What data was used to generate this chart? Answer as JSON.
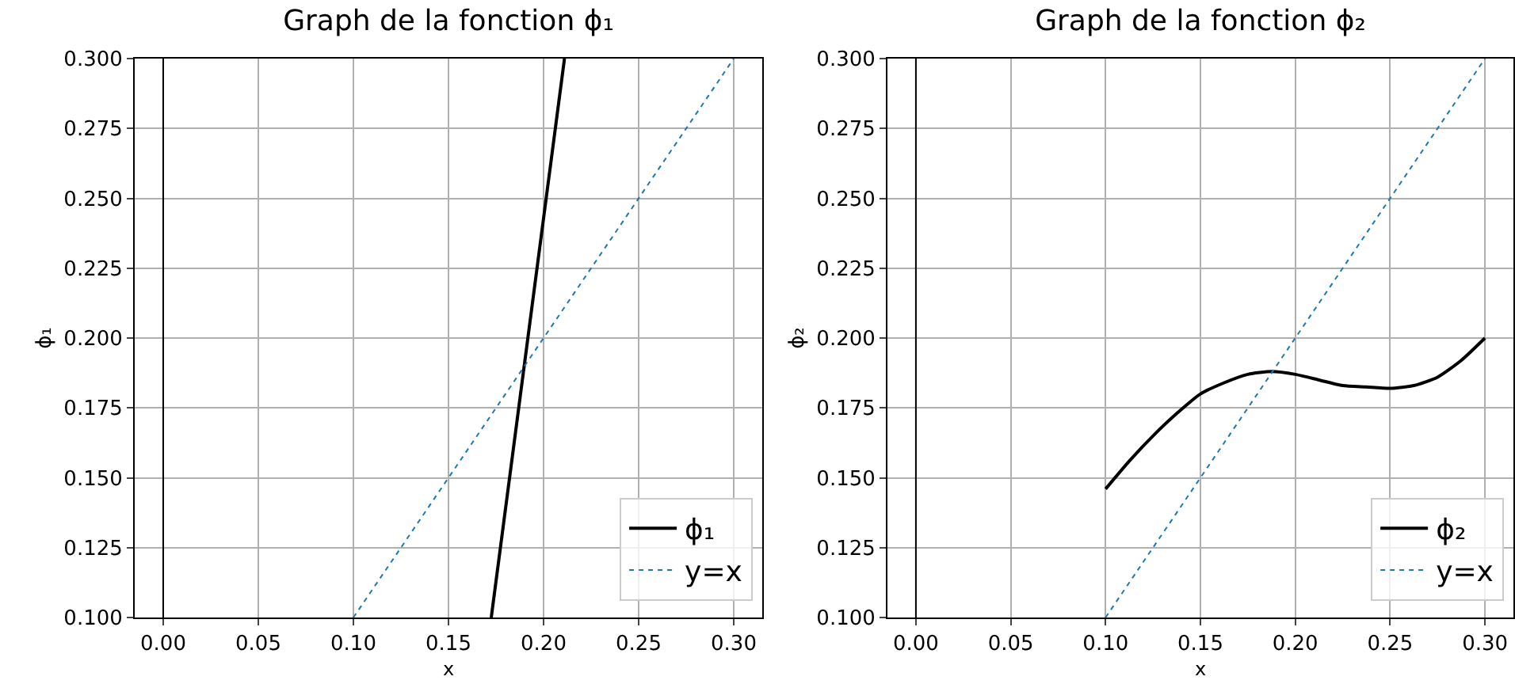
{
  "chart_data": [
    {
      "type": "line",
      "title": "Graph de la fonction ϕ₁",
      "xlabel": "x",
      "ylabel": "ϕ₁",
      "series": [
        {
          "name": "ϕ₁",
          "color": "#000000",
          "line_style": "solid",
          "x": [
            0.1725,
            0.211
          ],
          "values": [
            0.1,
            0.3
          ]
        },
        {
          "name": "y=x",
          "color": "#1f77b4",
          "line_style": "dotted",
          "x": [
            0.1,
            0.3
          ],
          "values": [
            0.1,
            0.3
          ]
        }
      ],
      "xlim": [
        -0.015,
        0.315
      ],
      "ylim": [
        0.1,
        0.3
      ],
      "xticks": [
        {
          "value": 0,
          "label": "0.00"
        },
        {
          "value": 0.05,
          "label": "0.05"
        },
        {
          "value": 0.1,
          "label": "0.10"
        },
        {
          "value": 0.15,
          "label": "0.15"
        },
        {
          "value": 0.2,
          "label": "0.20"
        },
        {
          "value": 0.25,
          "label": "0.25"
        },
        {
          "value": 0.3,
          "label": "0.30"
        }
      ],
      "yticks": [
        {
          "value": 0.1,
          "label": "0.100"
        },
        {
          "value": 0.125,
          "label": "0.125"
        },
        {
          "value": 0.15,
          "label": "0.150"
        },
        {
          "value": 0.175,
          "label": "0.175"
        },
        {
          "value": 0.2,
          "label": "0.200"
        },
        {
          "value": 0.225,
          "label": "0.225"
        },
        {
          "value": 0.25,
          "label": "0.250"
        },
        {
          "value": 0.275,
          "label": "0.275"
        },
        {
          "value": 0.3,
          "label": "0.300"
        }
      ],
      "ref_lines": [
        {
          "axis": "x",
          "value": 0,
          "color": "#000000"
        }
      ],
      "grid": true,
      "legend": "bottom right"
    },
    {
      "type": "line",
      "title": "Graph de la fonction ϕ₂",
      "xlabel": "x",
      "ylabel": "ϕ₂",
      "series": [
        {
          "name": "ϕ₂",
          "color": "#000000",
          "line_style": "solid",
          "x": [
            0.1,
            0.1125,
            0.125,
            0.1375,
            0.15,
            0.1625,
            0.175,
            0.1875,
            0.2,
            0.2125,
            0.225,
            0.2375,
            0.25,
            0.2625,
            0.275,
            0.2875,
            0.3
          ],
          "values": [
            0.146,
            0.156,
            0.165,
            0.173,
            0.18,
            0.184,
            0.187,
            0.188,
            0.187,
            0.185,
            0.183,
            0.1825,
            0.182,
            0.183,
            0.186,
            0.192,
            0.2
          ]
        },
        {
          "name": "y=x",
          "color": "#1f77b4",
          "line_style": "dotted",
          "x": [
            0.1,
            0.3
          ],
          "values": [
            0.1,
            0.3
          ]
        }
      ],
      "xlim": [
        -0.015,
        0.315
      ],
      "ylim": [
        0.1,
        0.3
      ],
      "xticks": [
        {
          "value": 0,
          "label": "0.00"
        },
        {
          "value": 0.05,
          "label": "0.05"
        },
        {
          "value": 0.1,
          "label": "0.10"
        },
        {
          "value": 0.15,
          "label": "0.15"
        },
        {
          "value": 0.2,
          "label": "0.20"
        },
        {
          "value": 0.25,
          "label": "0.25"
        },
        {
          "value": 0.3,
          "label": "0.30"
        }
      ],
      "yticks": [
        {
          "value": 0.1,
          "label": "0.100"
        },
        {
          "value": 0.125,
          "label": "0.125"
        },
        {
          "value": 0.15,
          "label": "0.150"
        },
        {
          "value": 0.175,
          "label": "0.175"
        },
        {
          "value": 0.2,
          "label": "0.200"
        },
        {
          "value": 0.225,
          "label": "0.225"
        },
        {
          "value": 0.25,
          "label": "0.250"
        },
        {
          "value": 0.275,
          "label": "0.275"
        },
        {
          "value": 0.3,
          "label": "0.300"
        }
      ],
      "ref_lines": [
        {
          "axis": "x",
          "value": 0,
          "color": "#000000"
        }
      ],
      "grid": true,
      "legend": "bottom right"
    }
  ]
}
